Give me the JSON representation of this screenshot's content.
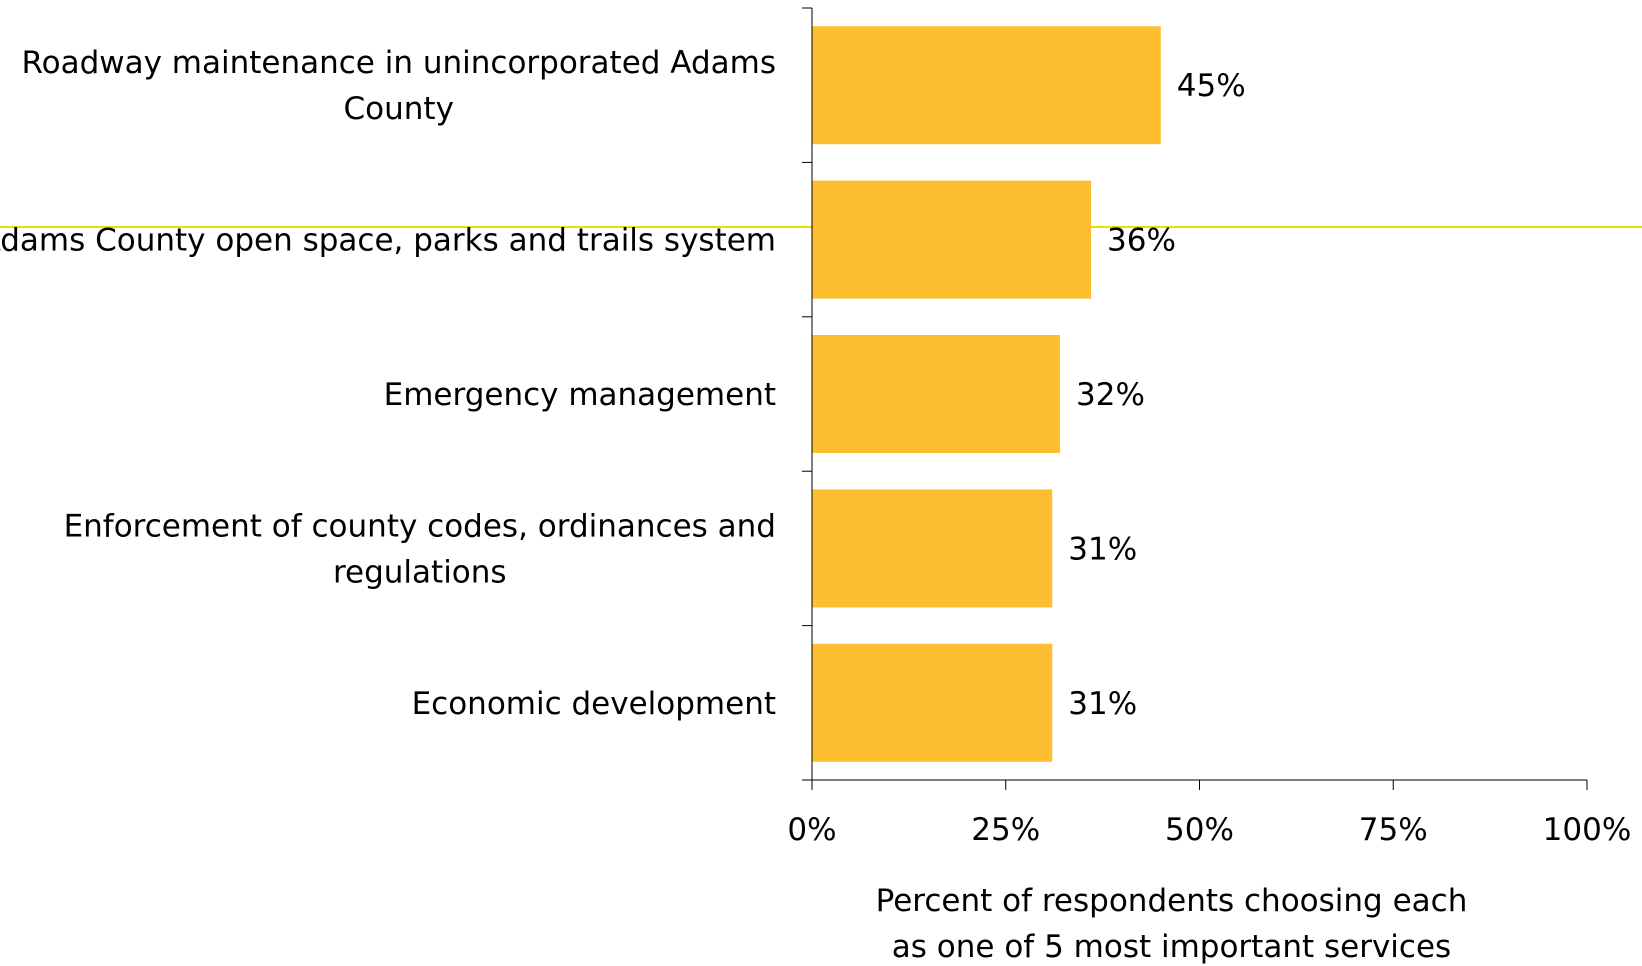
{
  "chart_data": {
    "type": "bar",
    "orientation": "horizontal",
    "categories": [
      [
        "Roadway maintenance in unincorporated Adams",
        "County"
      ],
      [
        "Adams County open space, parks and trails system"
      ],
      [
        "Emergency management"
      ],
      [
        "Enforcement of county codes, ordinances and",
        "regulations"
      ],
      [
        "Economic development"
      ]
    ],
    "values": [
      45,
      36,
      32,
      31,
      31
    ],
    "value_labels": [
      "45%",
      "36%",
      "32%",
      "31%",
      "31%"
    ],
    "xlim": [
      0,
      100
    ],
    "xticks": [
      0,
      25,
      50,
      75,
      100
    ],
    "xtick_labels": [
      "0%",
      "25%",
      "50%",
      "75%",
      "100%"
    ],
    "xlabel": [
      "Percent  of respondents choosing each",
      "as one of 5 most important services"
    ],
    "title": "",
    "grid": false,
    "legend": "none",
    "bar_color": "#FDBE30",
    "line_color": "#E8E200"
  }
}
